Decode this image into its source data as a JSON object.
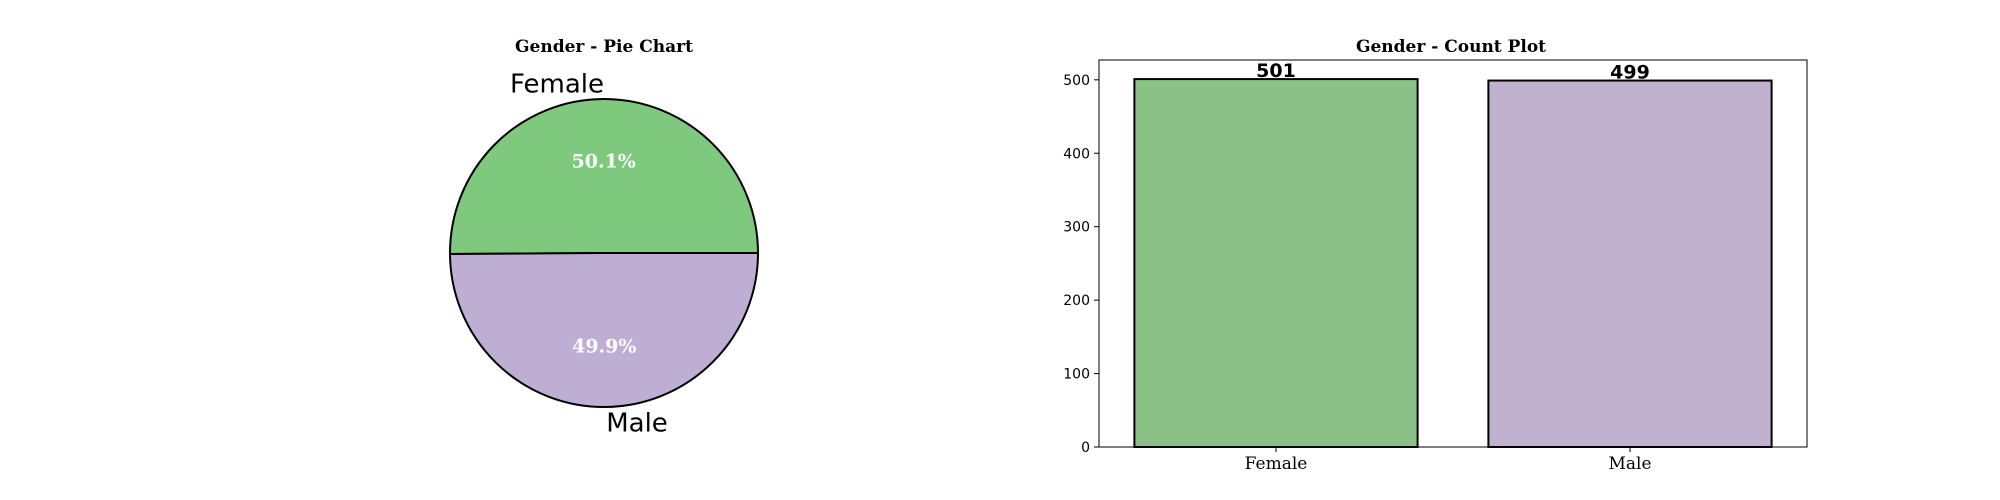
{
  "chart_data": [
    {
      "type": "pie",
      "title": "Gender - Pie Chart",
      "labels": [
        "Female",
        "Male"
      ],
      "values": [
        50.1,
        49.9
      ],
      "percent_labels": [
        "50.1%",
        "49.9%"
      ],
      "colors": [
        "#7fc97f",
        "#beaed4"
      ]
    },
    {
      "type": "bar",
      "title": "Gender - Count Plot",
      "categories": [
        "Female",
        "Male"
      ],
      "values": [
        501,
        499
      ],
      "value_labels": [
        "501",
        "499"
      ],
      "colors": [
        "#8bc087",
        "#c0b2ce"
      ],
      "ylim": [
        0,
        527
      ],
      "yticks": [
        0,
        100,
        200,
        300,
        400,
        500
      ],
      "ytick_labels": [
        "0",
        "100",
        "200",
        "300",
        "400",
        "500"
      ],
      "xlabel": "",
      "ylabel": "",
      "grid": false,
      "legend": false
    }
  ]
}
